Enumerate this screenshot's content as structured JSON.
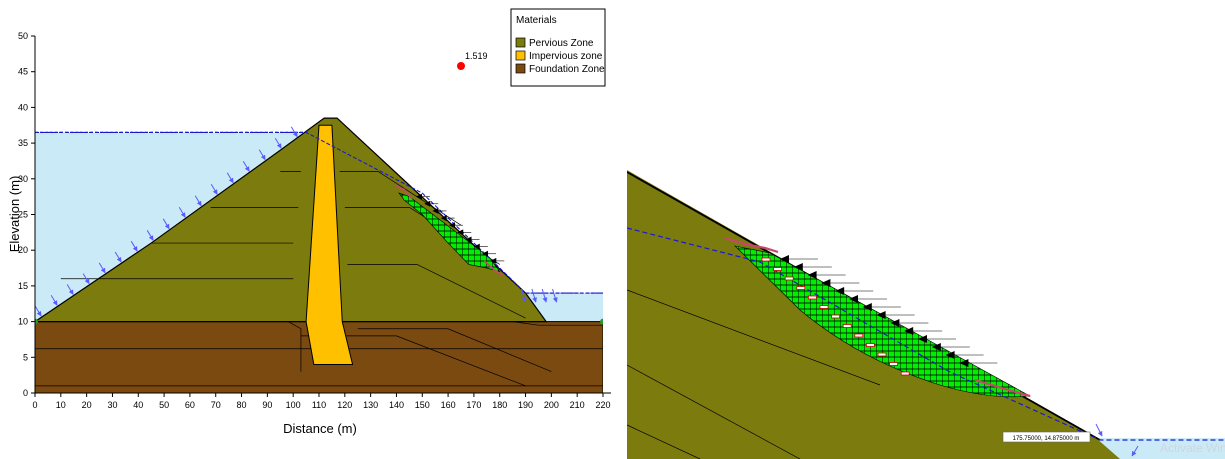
{
  "chart_data": [
    {
      "type": "scatter",
      "subtype": "slope-stability-cross-section",
      "xlabel": "Distance (m)",
      "ylabel": "Elevation (m)",
      "xlim": [
        0,
        220
      ],
      "ylim": [
        0,
        50
      ],
      "x_ticks": [
        0,
        10,
        20,
        30,
        40,
        50,
        60,
        70,
        80,
        90,
        100,
        110,
        120,
        130,
        140,
        150,
        160,
        170,
        180,
        190,
        200,
        210,
        220
      ],
      "y_ticks": [
        0,
        5,
        10,
        15,
        20,
        25,
        30,
        35,
        40,
        45,
        50
      ],
      "legend": {
        "title": "Materials",
        "placement": "top-right",
        "items": [
          {
            "label": "Pervious Zone",
            "color": "#7b7b0e"
          },
          {
            "label": "Impervious zone",
            "color": "#ffc000"
          },
          {
            "label": "Foundation Zone",
            "color": "#7a4a10"
          }
        ]
      },
      "critical_slip_surface": {
        "x": 165,
        "y": 45.8,
        "factor_of_safety": "1.519",
        "color": "#ff0000"
      },
      "upstream_water_level": 36.5,
      "downstream_water_level": 14,
      "geometry": {
        "foundation": {
          "x_range": [
            0,
            220
          ],
          "y_range": [
            0,
            10
          ]
        },
        "dam_outline": [
          [
            0,
            10
          ],
          [
            45,
            21
          ],
          [
            95,
            34
          ],
          [
            112,
            38.5
          ],
          [
            117,
            38.5
          ],
          [
            190,
            14
          ],
          [
            198,
            10
          ]
        ],
        "core": [
          [
            110,
            37.5
          ],
          [
            115,
            37.5
          ],
          [
            119,
            10
          ],
          [
            123,
            4
          ],
          [
            108,
            4
          ],
          [
            105,
            10
          ]
        ]
      },
      "colors": {
        "water": "#cbeaf7",
        "pervious": "#7b7b0e",
        "impervious": "#ffc000",
        "foundation": "#7a4a10",
        "slip_mass": "#00ee00",
        "phreatic": "#1a1acd",
        "arrows": "#5a5aff"
      }
    },
    {
      "type": "scatter",
      "subtype": "slope-stability-detail",
      "coordinate_readout": "175.75000, 14.875000 m",
      "watermark": "Activate Wind"
    }
  ]
}
